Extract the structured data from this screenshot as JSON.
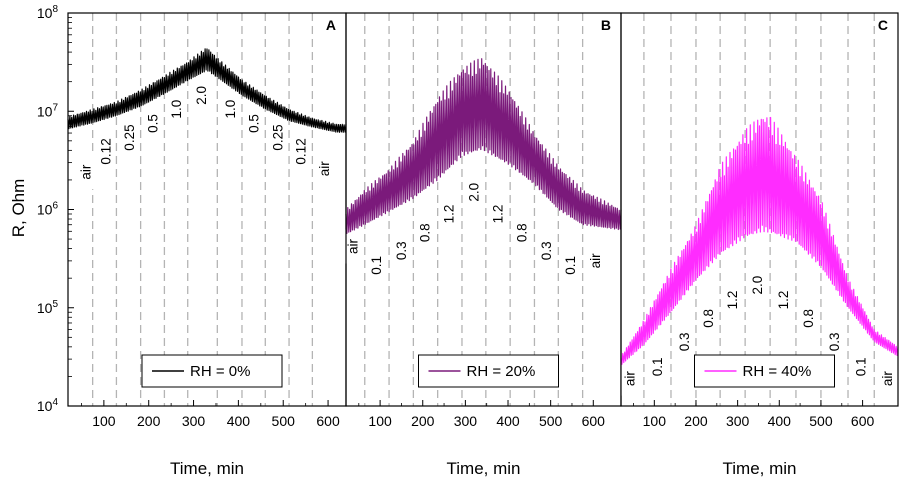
{
  "chart_data": {
    "type": "line",
    "ylabel": "R, Ohm",
    "yscale": "log",
    "ylim": [
      10000,
      100000000
    ],
    "y_ticks": [
      {
        "value": 10000,
        "base": "10",
        "exp": "4"
      },
      {
        "value": 100000,
        "base": "10",
        "exp": "5"
      },
      {
        "value": 1000000,
        "base": "10",
        "exp": "6"
      },
      {
        "value": 10000000,
        "base": "10",
        "exp": "7"
      },
      {
        "value": 100000000,
        "base": "10",
        "exp": "8"
      }
    ],
    "panels": [
      {
        "letter": "A",
        "legend": "RH = 0%",
        "color": "#000000",
        "xlabel": "Time, min",
        "xlim": [
          20,
          640
        ],
        "x_ticks": [
          100,
          200,
          300,
          400,
          500,
          600
        ],
        "switch_times": [
          75,
          128,
          182,
          235,
          287,
          353,
          408,
          460,
          513,
          565
        ],
        "segment_labels": [
          {
            "text": "air",
            "t": 60,
            "y": 2400000
          },
          {
            "text": "0.12",
            "t": 105,
            "y": 3900000
          },
          {
            "text": "0.25",
            "t": 157,
            "y": 5400000
          },
          {
            "text": "0.5",
            "t": 210,
            "y": 7500000
          },
          {
            "text": "1.0",
            "t": 262,
            "y": 10500000
          },
          {
            "text": "2.0",
            "t": 318,
            "y": 14500000
          },
          {
            "text": "1.0",
            "t": 382,
            "y": 10500000
          },
          {
            "text": "0.5",
            "t": 435,
            "y": 7500000
          },
          {
            "text": "0.25",
            "t": 488,
            "y": 5400000
          },
          {
            "text": "0.12",
            "t": 540,
            "y": 3900000
          },
          {
            "text": "air",
            "t": 592,
            "y": 2600000
          }
        ],
        "series": [
          {
            "name": "R max",
            "t": [
              20,
              75,
              128,
              182,
              235,
              287,
              330,
              353,
              408,
              460,
              513,
              565,
              620
            ],
            "r": [
              8800000,
              10500000,
              12500000,
              16500000,
              23000000,
              32000000,
              45000000,
              35000000,
              21000000,
              14500000,
              10500000,
              8500000,
              7400000
            ]
          },
          {
            "name": "R min",
            "t": [
              20,
              75,
              128,
              182,
              235,
              287,
              330,
              353,
              408,
              460,
              513,
              565,
              620
            ],
            "r": [
              6600000,
              7600000,
              9000000,
              11200000,
              15000000,
              20500000,
              26000000,
              22000000,
              14500000,
              10500000,
              8000000,
              6900000,
              6100000
            ]
          }
        ]
      },
      {
        "letter": "B",
        "legend": "RH = 20%",
        "color": "#7b1a7b",
        "xlabel": "Time, min",
        "xlim": [
          20,
          665
        ],
        "x_ticks": [
          100,
          200,
          300,
          400,
          500,
          600
        ],
        "switch_times": [
          64,
          121,
          178,
          235,
          292,
          348,
          405,
          462,
          518,
          575
        ],
        "segment_labels": [
          {
            "text": "air",
            "t": 36,
            "y": 420000
          },
          {
            "text": "0.1",
            "t": 92,
            "y": 270000
          },
          {
            "text": "0.3",
            "t": 150,
            "y": 380000
          },
          {
            "text": "0.8",
            "t": 205,
            "y": 580000
          },
          {
            "text": "1.2",
            "t": 262,
            "y": 900000
          },
          {
            "text": "2.0",
            "t": 320,
            "y": 1500000
          },
          {
            "text": "1.2",
            "t": 377,
            "y": 900000
          },
          {
            "text": "0.8",
            "t": 433,
            "y": 580000
          },
          {
            "text": "0.3",
            "t": 490,
            "y": 380000
          },
          {
            "text": "0.1",
            "t": 547,
            "y": 270000
          },
          {
            "text": "air",
            "t": 605,
            "y": 300000
          }
        ],
        "series": [
          {
            "name": "R max",
            "t": [
              20,
              64,
              121,
              178,
              235,
              292,
              340,
              348,
              405,
              462,
              518,
              575,
              665
            ],
            "r": [
              1000000,
              1600000,
              2600000,
              5000000,
              14000000,
              28000000,
              36000000,
              33000000,
              16000000,
              6000000,
              2800000,
              1600000,
              1000000
            ]
          },
          {
            "name": "R min",
            "t": [
              20,
              64,
              121,
              178,
              235,
              292,
              340,
              348,
              405,
              462,
              518,
              575,
              665
            ],
            "r": [
              560000,
              700000,
              950000,
              1300000,
              2000000,
              3500000,
              4100000,
              3900000,
              2800000,
              1800000,
              1000000,
              700000,
              620000
            ]
          }
        ]
      },
      {
        "letter": "C",
        "legend": "RH = 40%",
        "color": "#ff2cff",
        "xlabel": "Time, min",
        "xlim": [
          20,
          685
        ],
        "x_ticks": [
          100,
          200,
          300,
          400,
          500,
          600
        ],
        "switch_times": [
          75,
          140,
          200,
          258,
          318,
          378,
          440,
          500,
          565,
          628
        ],
        "segment_labels": [
          {
            "text": "air",
            "t": 42,
            "y": 19000
          },
          {
            "text": "0.1",
            "t": 108,
            "y": 25000
          },
          {
            "text": "0.3",
            "t": 172,
            "y": 45000
          },
          {
            "text": "0.8",
            "t": 230,
            "y": 78000
          },
          {
            "text": "1.2",
            "t": 288,
            "y": 120000
          },
          {
            "text": "2.0",
            "t": 348,
            "y": 170000
          },
          {
            "text": "1.2",
            "t": 410,
            "y": 120000
          },
          {
            "text": "0.8",
            "t": 470,
            "y": 78000
          },
          {
            "text": "0.3",
            "t": 532,
            "y": 45000
          },
          {
            "text": "0.1",
            "t": 596,
            "y": 25000
          },
          {
            "text": "air",
            "t": 660,
            "y": 19000
          }
        ],
        "series": [
          {
            "name": "R max",
            "t": [
              20,
              75,
              140,
              200,
              258,
              318,
              360,
              378,
              440,
              500,
              565,
              628,
              685
            ],
            "r": [
              32000,
              75000,
              250000,
              700000,
              2800000,
              6500000,
              9500000,
              9000000,
              3500000,
              1300000,
              200000,
              60000,
              40000
            ]
          },
          {
            "name": "R min",
            "t": [
              20,
              75,
              140,
              200,
              258,
              318,
              360,
              378,
              440,
              500,
              565,
              628,
              685
            ],
            "r": [
              26000,
              42000,
              90000,
              190000,
              350000,
              520000,
              600000,
              580000,
              470000,
              260000,
              100000,
              45000,
              32000
            ]
          }
        ]
      }
    ]
  }
}
